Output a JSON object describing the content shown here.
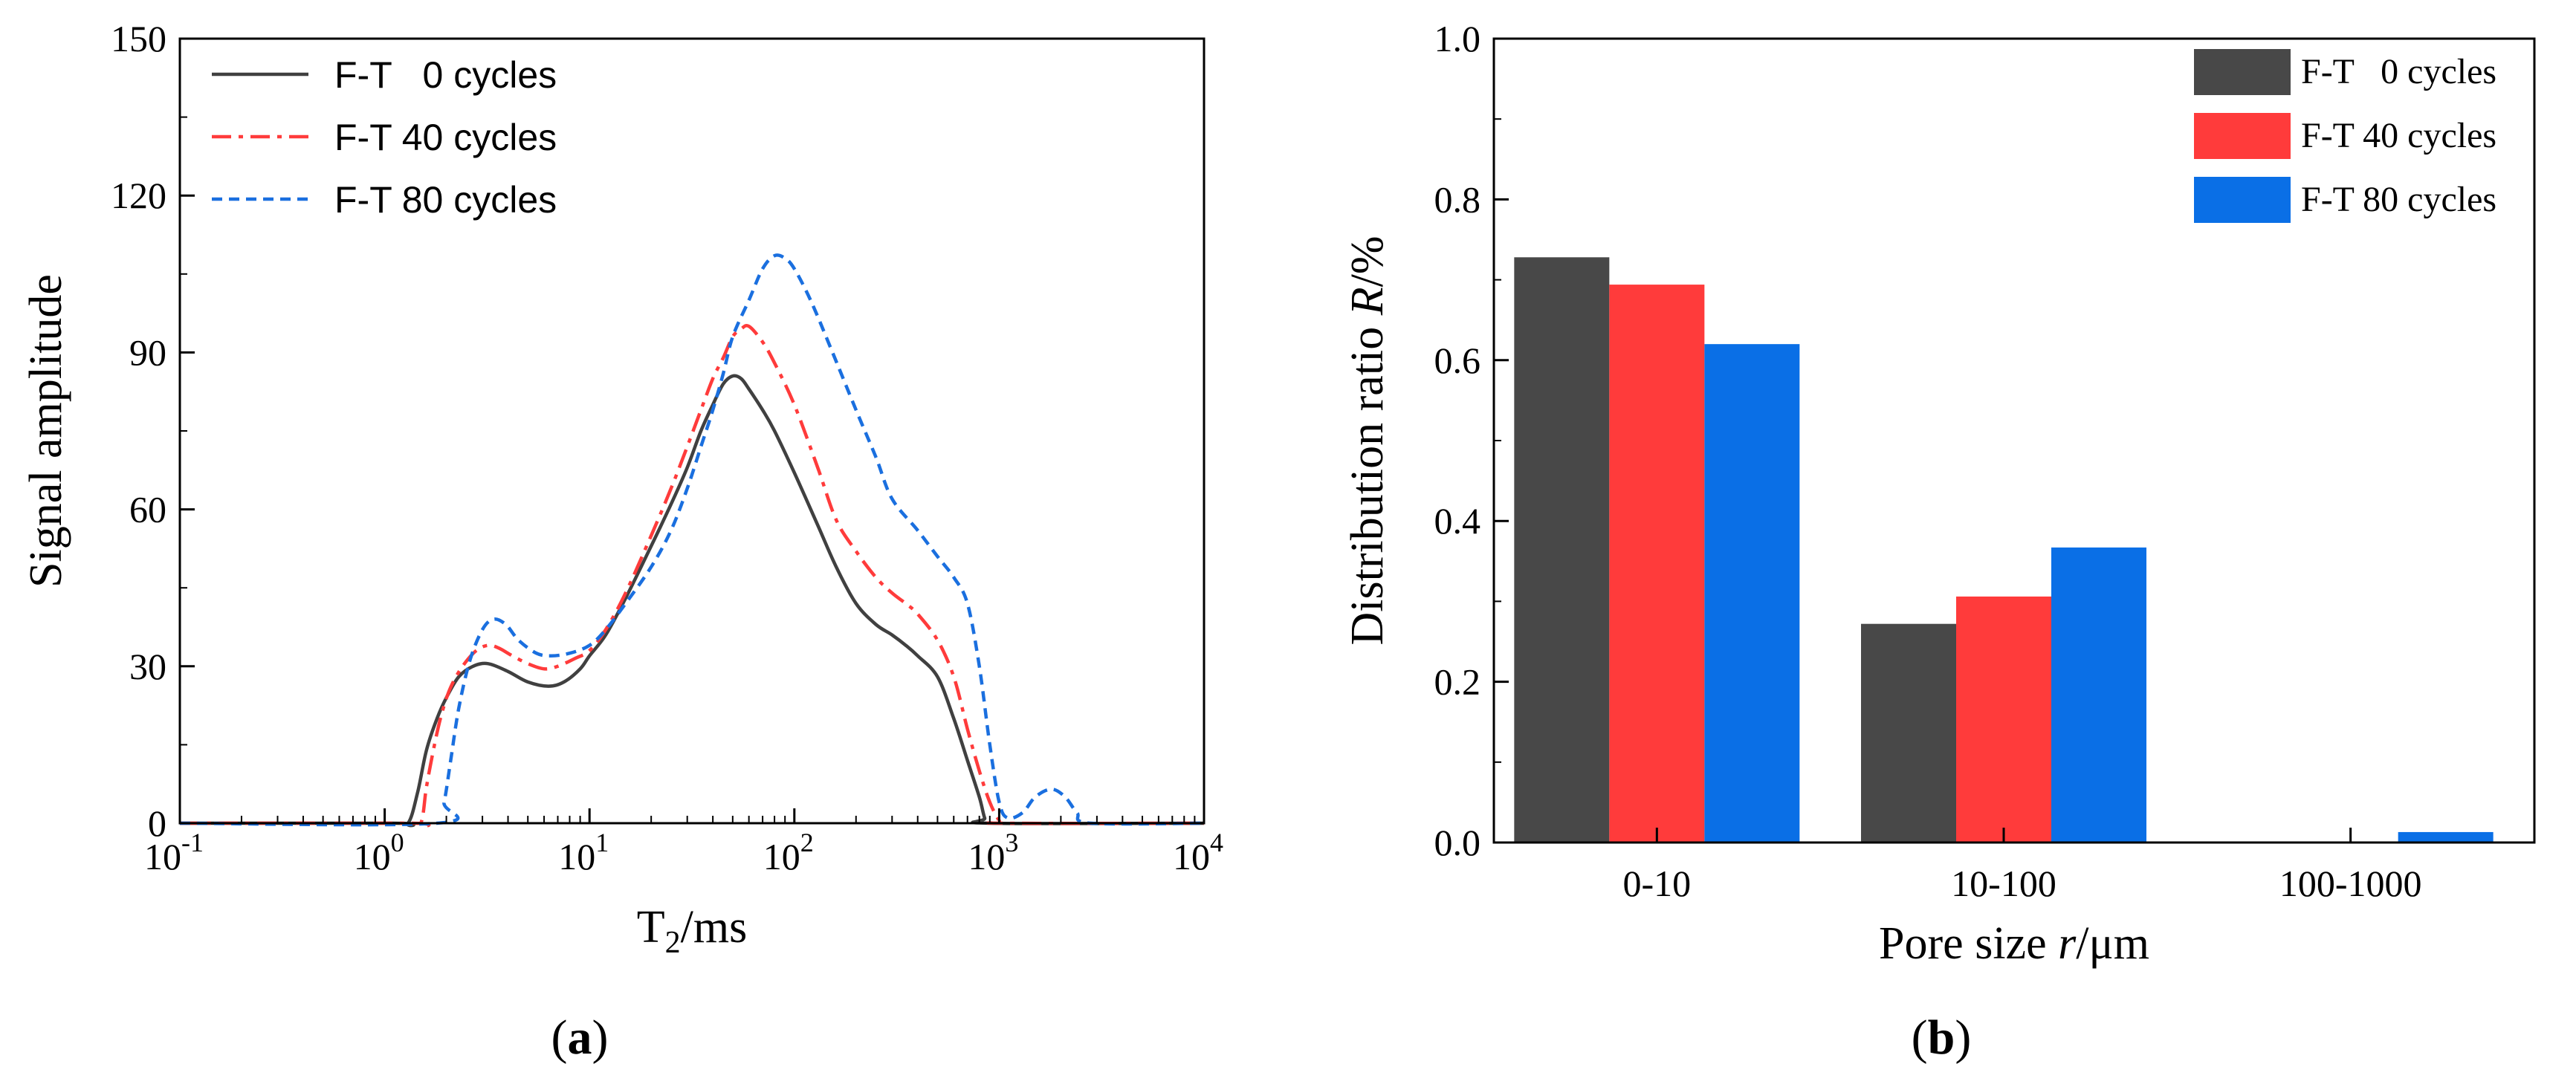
{
  "chart_data": [
    {
      "id": "a",
      "type": "line",
      "caption_open": "(",
      "caption_letter": "a",
      "caption_close": ")",
      "xlabel_main": "T",
      "xlabel_sub": "2",
      "xlabel_rest": "/ms",
      "ylabel": "Signal amplitude",
      "xscale": "log",
      "xlim": [
        0.1,
        10000
      ],
      "ylim": [
        0,
        150
      ],
      "grid": false,
      "legend_position": "top-left",
      "x_ticks": [
        {
          "value": 0.1,
          "base": "10",
          "exp": "-1"
        },
        {
          "value": 1,
          "base": "10",
          "exp": "0"
        },
        {
          "value": 10,
          "base": "10",
          "exp": "1"
        },
        {
          "value": 100,
          "base": "10",
          "exp": "2"
        },
        {
          "value": 1000,
          "base": "10",
          "exp": "3"
        },
        {
          "value": 10000,
          "base": "10",
          "exp": "4"
        }
      ],
      "y_ticks": [
        {
          "value": 0,
          "label": "0"
        },
        {
          "value": 30,
          "label": "30"
        },
        {
          "value": 60,
          "label": "60"
        },
        {
          "value": 90,
          "label": "90"
        },
        {
          "value": 120,
          "label": "120"
        },
        {
          "value": 150,
          "label": "150"
        }
      ],
      "series": [
        {
          "name": "F-T   0 cycles",
          "color": "#404040",
          "dash": "solid",
          "points": [
            [
              0.1,
              0
            ],
            [
              1.1,
              0
            ],
            [
              1.3,
              0
            ],
            [
              1.45,
              6
            ],
            [
              1.6,
              14
            ],
            [
              1.8,
              20
            ],
            [
              2.0,
              24
            ],
            [
              2.3,
              28
            ],
            [
              2.7,
              30
            ],
            [
              3.2,
              30.5
            ],
            [
              4,
              29
            ],
            [
              5,
              27
            ],
            [
              6.3,
              26.2
            ],
            [
              7.5,
              27
            ],
            [
              9,
              29.5
            ],
            [
              10,
              32
            ],
            [
              12,
              36
            ],
            [
              15,
              43
            ],
            [
              20,
              53
            ],
            [
              25,
              61
            ],
            [
              30,
              68
            ],
            [
              35,
              75
            ],
            [
              40,
              80
            ],
            [
              45,
              84
            ],
            [
              50,
              85.5
            ],
            [
              55,
              85
            ],
            [
              60,
              83
            ],
            [
              70,
              79
            ],
            [
              80,
              75
            ],
            [
              100,
              67
            ],
            [
              130,
              57
            ],
            [
              160,
              49
            ],
            [
              200,
              42
            ],
            [
              250,
              38
            ],
            [
              300,
              36
            ],
            [
              350,
              34
            ],
            [
              400,
              32
            ],
            [
              500,
              28
            ],
            [
              600,
              20
            ],
            [
              700,
              12
            ],
            [
              800,
              5
            ],
            [
              850,
              1
            ],
            [
              900,
              0
            ],
            [
              10000,
              0
            ]
          ]
        },
        {
          "name": "F-T 40 cycles",
          "color": "#ff3b3b",
          "dash": "dashdot",
          "points": [
            [
              0.1,
              0
            ],
            [
              1.3,
              0
            ],
            [
              1.5,
              0
            ],
            [
              1.6,
              7
            ],
            [
              1.75,
              15
            ],
            [
              1.9,
              21
            ],
            [
              2.1,
              26
            ],
            [
              2.4,
              30
            ],
            [
              2.8,
              33
            ],
            [
              3.2,
              34
            ],
            [
              3.6,
              33.5
            ],
            [
              4.2,
              32
            ],
            [
              5,
              30.5
            ],
            [
              6,
              29.5
            ],
            [
              7,
              30
            ],
            [
              8.5,
              31.5
            ],
            [
              10,
              33
            ],
            [
              12,
              37
            ],
            [
              15,
              44
            ],
            [
              20,
              55
            ],
            [
              25,
              64
            ],
            [
              30,
              72
            ],
            [
              35,
              79
            ],
            [
              40,
              85
            ],
            [
              45,
              89
            ],
            [
              50,
              93
            ],
            [
              55,
              94.5
            ],
            [
              60,
              95
            ],
            [
              70,
              92
            ],
            [
              80,
              88
            ],
            [
              100,
              80
            ],
            [
              130,
              68
            ],
            [
              160,
              58
            ],
            [
              200,
              52
            ],
            [
              250,
              47
            ],
            [
              300,
              44
            ],
            [
              350,
              42
            ],
            [
              400,
              40
            ],
            [
              500,
              35
            ],
            [
              600,
              28
            ],
            [
              700,
              18
            ],
            [
              800,
              10
            ],
            [
              900,
              4
            ],
            [
              1000,
              0.5
            ],
            [
              1050,
              0
            ],
            [
              10000,
              0
            ]
          ]
        },
        {
          "name": "F-T 80 cycles",
          "color": "#1a6fdf",
          "dash": "dashed",
          "points": [
            [
              0.1,
              0
            ],
            [
              1.8,
              0
            ],
            [
              1.95,
              4
            ],
            [
              2.1,
              12
            ],
            [
              2.3,
              22
            ],
            [
              2.6,
              31
            ],
            [
              3.0,
              37
            ],
            [
              3.4,
              39
            ],
            [
              3.9,
              38
            ],
            [
              4.5,
              35
            ],
            [
              5.5,
              32.5
            ],
            [
              6.5,
              32
            ],
            [
              8,
              32.5
            ],
            [
              10,
              34
            ],
            [
              12,
              37
            ],
            [
              15,
              42
            ],
            [
              20,
              49
            ],
            [
              25,
              56
            ],
            [
              30,
              64
            ],
            [
              35,
              72
            ],
            [
              40,
              79
            ],
            [
              45,
              86
            ],
            [
              50,
              93
            ],
            [
              60,
              100
            ],
            [
              70,
              106
            ],
            [
              80,
              108.5
            ],
            [
              90,
              108
            ],
            [
              100,
              106
            ],
            [
              120,
              100
            ],
            [
              150,
              91
            ],
            [
              200,
              79
            ],
            [
              250,
              70
            ],
            [
              300,
              62
            ],
            [
              400,
              56
            ],
            [
              500,
              51
            ],
            [
              600,
              47
            ],
            [
              700,
              42
            ],
            [
              800,
              30
            ],
            [
              900,
              15
            ],
            [
              1000,
              4
            ],
            [
              1100,
              1
            ],
            [
              1300,
              2
            ],
            [
              1500,
              5
            ],
            [
              1800,
              6.5
            ],
            [
              2100,
              5
            ],
            [
              2400,
              2
            ],
            [
              2800,
              0
            ],
            [
              10000,
              0
            ]
          ]
        }
      ]
    },
    {
      "id": "b",
      "type": "bar",
      "caption_open": "(",
      "caption_letter": "b",
      "caption_close": ")",
      "xlabel_pre": "Pore size ",
      "xlabel_var": "r",
      "xlabel_post": "/μm",
      "ylabel_pre": "Distribution ratio ",
      "ylabel_var": "R",
      "ylabel_post": "/%",
      "ylim": [
        0,
        1.0
      ],
      "grid": false,
      "legend_position": "top-right",
      "y_ticks": [
        {
          "value": 0.0,
          "label": "0.0"
        },
        {
          "value": 0.2,
          "label": "0.2"
        },
        {
          "value": 0.4,
          "label": "0.4"
        },
        {
          "value": 0.6,
          "label": "0.6"
        },
        {
          "value": 0.8,
          "label": "0.8"
        },
        {
          "value": 1.0,
          "label": "1.0"
        }
      ],
      "categories": [
        "0-10",
        "10-100",
        "100-1000"
      ],
      "series": [
        {
          "name": "F-T   0 cycles",
          "color": "#484848",
          "values": [
            0.728,
            0.272,
            0.0
          ]
        },
        {
          "name": "F-T 40 cycles",
          "color": "#ff3b3b",
          "values": [
            0.694,
            0.306,
            0.0
          ]
        },
        {
          "name": "F-T 80 cycles",
          "color": "#0a6fe6",
          "values": [
            0.62,
            0.367,
            0.013
          ]
        }
      ]
    }
  ]
}
